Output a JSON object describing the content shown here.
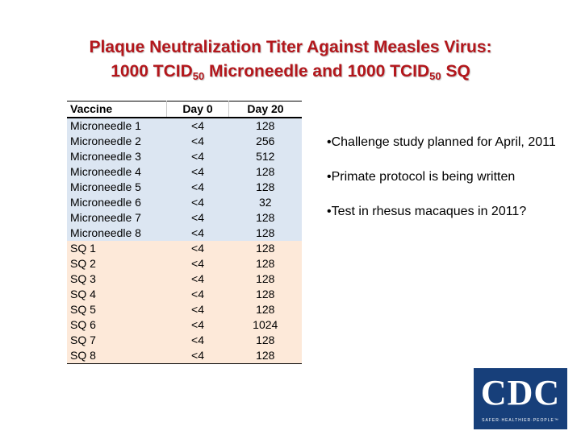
{
  "slide": {
    "title_line1": "Plaque Neutralization Titer Against Measles Virus:",
    "title_line2": {
      "t1": "1000 TCID",
      "s1": "50",
      "t2": " Microneedle and 1000 TCID",
      "s2": "50",
      "t3": " SQ"
    }
  },
  "table": {
    "headers": [
      "Vaccine",
      "Day 0",
      "Day 20"
    ],
    "rows": [
      {
        "vaccine": "Microneedle 1",
        "day0": "<4",
        "day20": "128"
      },
      {
        "vaccine": "Microneedle 2",
        "day0": "<4",
        "day20": "256"
      },
      {
        "vaccine": "Microneedle 3",
        "day0": "<4",
        "day20": "512"
      },
      {
        "vaccine": "Microneedle 4",
        "day0": "<4",
        "day20": "128"
      },
      {
        "vaccine": "Microneedle 5",
        "day0": "<4",
        "day20": "128"
      },
      {
        "vaccine": "Microneedle 6",
        "day0": "<4",
        "day20": "32"
      },
      {
        "vaccine": "Microneedle 7",
        "day0": "<4",
        "day20": "128"
      },
      {
        "vaccine": "Microneedle 8",
        "day0": "<4",
        "day20": "128"
      },
      {
        "vaccine": "SQ 1",
        "day0": "<4",
        "day20": "128"
      },
      {
        "vaccine": "SQ 2",
        "day0": "<4",
        "day20": "128"
      },
      {
        "vaccine": "SQ 3",
        "day0": "<4",
        "day20": "128"
      },
      {
        "vaccine": "SQ 4",
        "day0": "<4",
        "day20": "128"
      },
      {
        "vaccine": "SQ 5",
        "day0": "<4",
        "day20": "128"
      },
      {
        "vaccine": "SQ 6",
        "day0": "<4",
        "day20": "1024"
      },
      {
        "vaccine": "SQ 7",
        "day0": "<4",
        "day20": "128"
      },
      {
        "vaccine": "SQ 8",
        "day0": "<4",
        "day20": "128"
      }
    ],
    "group_colors": {
      "microneedle": "#dce6f2",
      "sq": "#fde9d9"
    }
  },
  "bullets": [
    "•Challenge study planned for April, 2011",
    "•Primate protocol is being written",
    "•Test in rhesus macaques in 2011?"
  ],
  "logo": {
    "text": "CDC",
    "tagline": "SAFER·HEALTHIER·PEOPLE™",
    "color": "#173f7a"
  },
  "colors": {
    "title": "#b3171c"
  }
}
